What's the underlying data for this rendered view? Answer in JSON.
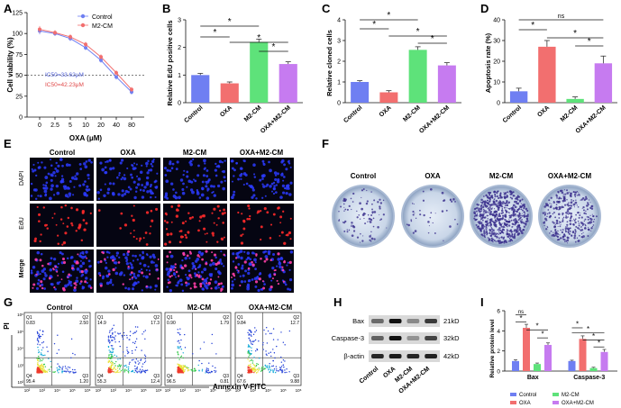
{
  "figure": {
    "panel_letters": [
      "A",
      "B",
      "C",
      "D",
      "E",
      "F",
      "G",
      "H",
      "I"
    ],
    "groups": [
      "Control",
      "OXA",
      "M2-CM",
      "OXA+M2-CM"
    ],
    "group_colors": [
      "#6f7ff2",
      "#f26f6f",
      "#5ee27a",
      "#c67bf0"
    ],
    "sig_star": "*",
    "sig_ns": "ns"
  },
  "panel_a": {
    "ylabel": "Cell viability (%)",
    "xlabel": "OXA (μM)",
    "ic50_control": "IC50=33.62μM",
    "ic50_m2cm": "IC50=42.23μM"
  },
  "panel_b": {
    "ylabel": "Relative EdU positive cells"
  },
  "panel_c": {
    "ylabel": "Relative cloned cells"
  },
  "panel_d": {
    "ylabel": "Apoptosis rate (%)"
  },
  "panel_e": {
    "row_labels": [
      "DAPI",
      "EdU",
      "Merge"
    ]
  },
  "panel_g": {
    "xlabel": "Annexin V-FITC",
    "ylabel": "PI",
    "quadrants": [
      {
        "q1": "0.83",
        "q2": "2.50",
        "q3": "1.20",
        "q4": "95.4"
      },
      {
        "q1": "14.9",
        "q2": "17.3",
        "q3": "12.4",
        "q4": "55.3"
      },
      {
        "q1": "0.90",
        "q2": "1.79",
        "q3": "0.81",
        "q4": "96.5"
      },
      {
        "q1": "9.84",
        "q2": "12.7",
        "q3": "9.88",
        "q4": "67.6"
      }
    ],
    "quad_names": {
      "q1": "Q1",
      "q2": "Q2",
      "q3": "Q3",
      "q4": "Q4"
    },
    "tick_labels": [
      "10²",
      "10³",
      "10⁴",
      "10⁵",
      "10⁶"
    ]
  },
  "panel_h": {
    "proteins": [
      "Bax",
      "Caspase-3",
      "β-actin"
    ],
    "sizes": [
      "21kD",
      "32kD",
      "42kD"
    ]
  },
  "panel_i": {
    "ylabel": "Relative protein level"
  },
  "chart_data": [
    {
      "panel": "A",
      "type": "line",
      "x": [
        "0",
        "2.5",
        "5",
        "10",
        "20",
        "40",
        "80"
      ],
      "series": [
        {
          "name": "Control",
          "values": [
            103,
            100,
            94,
            83,
            68,
            48,
            30
          ],
          "errors": [
            4,
            3,
            3,
            3,
            3,
            3,
            3
          ]
        },
        {
          "name": "M2-CM",
          "values": [
            105,
            101,
            96,
            87,
            72,
            53,
            33
          ],
          "errors": [
            4,
            3,
            3,
            3,
            3,
            3,
            3
          ]
        }
      ],
      "ylabel": "Cell viability (%)",
      "xlabel": "OXA (μM)",
      "ylim": [
        0,
        125
      ],
      "yticks": [
        0,
        25,
        50,
        75,
        100,
        125
      ],
      "reference_line": 50
    },
    {
      "panel": "B",
      "type": "bar",
      "categories": [
        "Control",
        "OXA",
        "M2-CM",
        "OXA+M2-CM"
      ],
      "values": [
        1.0,
        0.7,
        2.2,
        1.4
      ],
      "errors": [
        0.06,
        0.05,
        0.1,
        0.08
      ],
      "ylabel": "Relative EdU positive cells",
      "ylim": [
        0,
        3
      ],
      "yticks": [
        0,
        1,
        2,
        3
      ]
    },
    {
      "panel": "C",
      "type": "bar",
      "categories": [
        "Control",
        "OXA",
        "M2-CM",
        "OXA+M2-CM"
      ],
      "values": [
        1.0,
        0.5,
        2.55,
        1.8
      ],
      "errors": [
        0.06,
        0.08,
        0.15,
        0.13
      ],
      "ylabel": "Relative cloned cells",
      "ylim": [
        0,
        4
      ],
      "yticks": [
        0,
        1,
        2,
        3,
        4
      ]
    },
    {
      "panel": "D",
      "type": "bar",
      "categories": [
        "Control",
        "OXA",
        "M2-CM",
        "OXA+M2-CM"
      ],
      "values": [
        5.5,
        27,
        1.8,
        19
      ],
      "errors": [
        1.5,
        3,
        1,
        3.5
      ],
      "ylabel": "Apoptosis rate (%)",
      "ylim": [
        0,
        40
      ],
      "yticks": [
        0,
        10,
        20,
        30,
        40
      ]
    },
    {
      "panel": "I",
      "type": "bar",
      "categories": [
        "Bax",
        "Caspase-3"
      ],
      "series": [
        {
          "name": "Control",
          "values": [
            1.0,
            1.0
          ],
          "errors": [
            0.12,
            0.08
          ]
        },
        {
          "name": "OXA",
          "values": [
            4.3,
            3.2
          ],
          "errors": [
            0.35,
            0.3
          ]
        },
        {
          "name": "M2-CM",
          "values": [
            0.7,
            0.3
          ],
          "errors": [
            0.1,
            0.08
          ]
        },
        {
          "name": "OXA+M2-CM",
          "values": [
            2.6,
            1.9
          ],
          "errors": [
            0.2,
            0.25
          ]
        }
      ],
      "ylabel": "Relative protein level",
      "ylim": [
        0,
        6
      ],
      "yticks": [
        0,
        2,
        4,
        6
      ]
    }
  ]
}
